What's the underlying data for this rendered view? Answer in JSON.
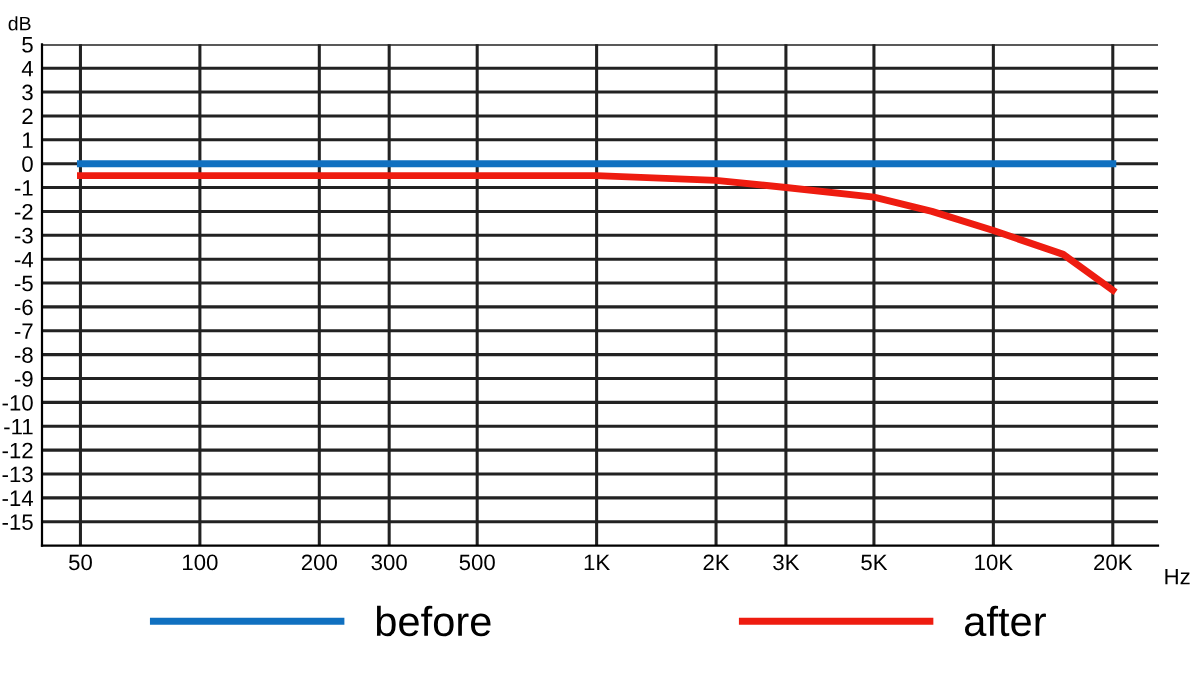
{
  "chart_data": {
    "type": "line",
    "xlabel": "Hz",
    "ylabel": "dB",
    "log": "x",
    "grid": true,
    "legend": "bottom",
    "marker": "none",
    "line_style": "solid",
    "xlim": [
      40,
      26000
    ],
    "ylim": [
      -16,
      5
    ],
    "xticks": [
      50,
      100,
      200,
      300,
      500,
      {
        "value": 1000,
        "label": "1K"
      },
      {
        "value": 2000,
        "label": "2K"
      },
      {
        "value": 3000,
        "label": "3K"
      },
      {
        "value": 5000,
        "label": "5K"
      },
      {
        "value": 10000,
        "label": "10K"
      },
      {
        "value": 20000,
        "label": "20K"
      }
    ],
    "yticks": [
      5,
      4,
      3,
      2,
      1,
      0,
      -1,
      -2,
      -3,
      -4,
      -5,
      -6,
      -7,
      -8,
      -9,
      -10,
      -11,
      -12,
      -13,
      -14,
      -15
    ],
    "series": [
      {
        "name": "before",
        "color": "#1070c0",
        "x": [
          50,
          20000
        ],
        "values": [
          0,
          0
        ]
      },
      {
        "name": "after",
        "color": "#ee1c10",
        "x": [
          50,
          500,
          1000,
          2000,
          3000,
          5000,
          7000,
          10000,
          15000,
          20000
        ],
        "values": [
          -0.5,
          -0.5,
          -0.5,
          -0.7,
          -1.0,
          -1.4,
          -2.0,
          -2.8,
          -3.8,
          -5.3
        ]
      }
    ]
  }
}
